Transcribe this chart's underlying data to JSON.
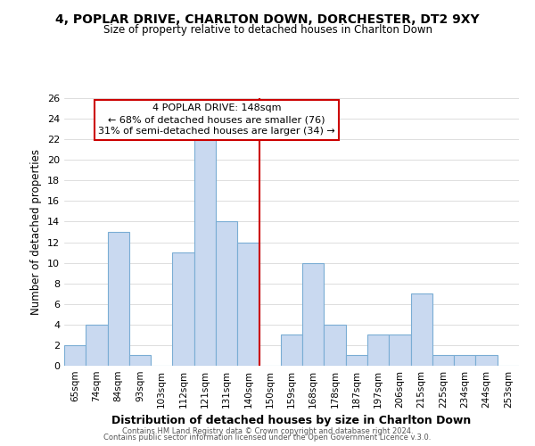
{
  "title": "4, POPLAR DRIVE, CHARLTON DOWN, DORCHESTER, DT2 9XY",
  "subtitle": "Size of property relative to detached houses in Charlton Down",
  "xlabel": "Distribution of detached houses by size in Charlton Down",
  "ylabel": "Number of detached properties",
  "bin_labels": [
    "65sqm",
    "74sqm",
    "84sqm",
    "93sqm",
    "103sqm",
    "112sqm",
    "121sqm",
    "131sqm",
    "140sqm",
    "150sqm",
    "159sqm",
    "168sqm",
    "178sqm",
    "187sqm",
    "197sqm",
    "206sqm",
    "215sqm",
    "225sqm",
    "234sqm",
    "244sqm",
    "253sqm"
  ],
  "bar_heights": [
    2,
    4,
    13,
    1,
    0,
    11,
    22,
    14,
    12,
    0,
    3,
    10,
    4,
    1,
    3,
    3,
    7,
    1,
    1,
    1,
    0
  ],
  "bar_color": "#c9d9f0",
  "bar_edge_color": "#7aadd4",
  "vline_color": "#cc0000",
  "ylim": [
    0,
    26
  ],
  "yticks": [
    0,
    2,
    4,
    6,
    8,
    10,
    12,
    14,
    16,
    18,
    20,
    22,
    24,
    26
  ],
  "annotation_title": "4 POPLAR DRIVE: 148sqm",
  "annotation_line1": "← 68% of detached houses are smaller (76)",
  "annotation_line2": "31% of semi-detached houses are larger (34) →",
  "annotation_box_color": "#ffffff",
  "annotation_box_edge": "#cc0000",
  "footer1": "Contains HM Land Registry data © Crown copyright and database right 2024.",
  "footer2": "Contains public sector information licensed under the Open Government Licence v.3.0."
}
